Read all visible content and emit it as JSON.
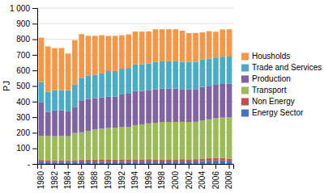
{
  "chart_data": {
    "type": "bar",
    "stacked": true,
    "grid": true,
    "legend": "right",
    "ylabel": "PJ",
    "categories": [
      "1980",
      null,
      "1982",
      null,
      "1984",
      null,
      "1986",
      null,
      "1988",
      null,
      "1990",
      null,
      "1992",
      null,
      "1994",
      null,
      "1996",
      null,
      "1998",
      null,
      "2000",
      null,
      "2002",
      null,
      "2004",
      null,
      "2006",
      null,
      "2008"
    ],
    "series": [
      {
        "name": "Energy Sector",
        "color": "#4472C4",
        "values": [
          15,
          14,
          13,
          14,
          13,
          14,
          16,
          15,
          15,
          14,
          14,
          15,
          14,
          14,
          15,
          15,
          16,
          15,
          15,
          15,
          15,
          16,
          15,
          16,
          18,
          20,
          22,
          22,
          20
        ]
      },
      {
        "name": "Non Energy",
        "color": "#C0504D",
        "values": [
          10,
          10,
          10,
          10,
          10,
          10,
          12,
          12,
          12,
          12,
          12,
          12,
          12,
          12,
          14,
          14,
          14,
          14,
          14,
          14,
          14,
          14,
          14,
          14,
          16,
          16,
          16,
          16,
          14
        ]
      },
      {
        "name": "Transport",
        "color": "#9BBB59",
        "values": [
          155,
          155,
          155,
          155,
          155,
          175,
          175,
          185,
          195,
          200,
          205,
          205,
          210,
          210,
          220,
          225,
          230,
          235,
          240,
          240,
          240,
          240,
          240,
          240,
          245,
          250,
          255,
          260,
          265
        ]
      },
      {
        "name": "Production",
        "color": "#8064A2",
        "values": [
          215,
          155,
          165,
          165,
          160,
          165,
          205,
          205,
          200,
          200,
          200,
          200,
          210,
          215,
          220,
          215,
          215,
          215,
          215,
          215,
          215,
          210,
          210,
          210,
          215,
          215,
          215,
          215,
          215
        ]
      },
      {
        "name": "Trade and Services",
        "color": "#4BACC6",
        "values": [
          130,
          130,
          130,
          130,
          135,
          145,
          145,
          150,
          150,
          155,
          165,
          165,
          165,
          165,
          170,
          170,
          170,
          175,
          175,
          175,
          175,
          175,
          175,
          175,
          175,
          175,
          175,
          175,
          175
        ]
      },
      {
        "name": "Housholds",
        "color": "#F79646",
        "values": [
          285,
          290,
          270,
          270,
          235,
          285,
          280,
          255,
          250,
          245,
          225,
          225,
          215,
          215,
          210,
          210,
          205,
          210,
          205,
          205,
          205,
          200,
          185,
          185,
          175,
          175,
          165,
          175,
          175
        ]
      }
    ],
    "ylim": [
      0,
      1000
    ],
    "yticks": [
      {
        "value": 0,
        "label": "-"
      },
      100,
      200,
      300,
      400,
      500,
      600,
      700,
      800,
      900,
      {
        "value": 1000,
        "label": "1 000"
      }
    ]
  }
}
